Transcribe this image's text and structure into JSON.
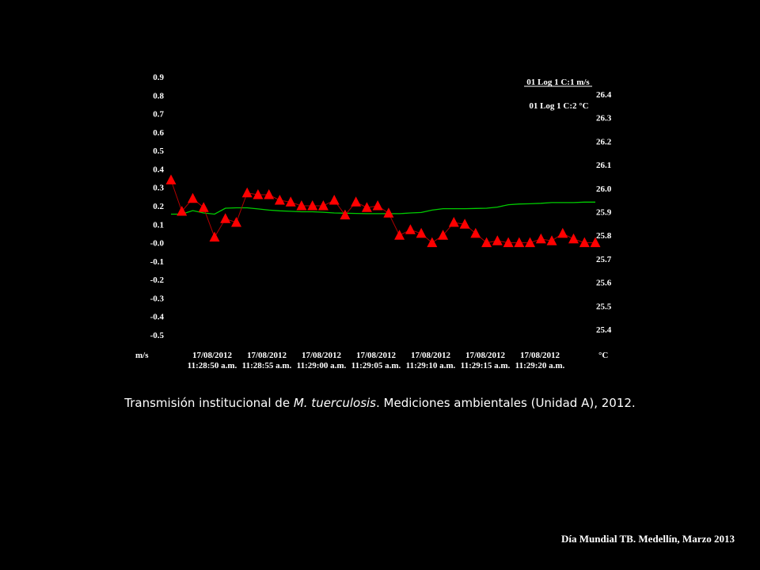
{
  "chart_data": {
    "type": "line",
    "x_tick_labels": [
      {
        "date": "17/08/2012",
        "time": "11:28:50 a.m."
      },
      {
        "date": "17/08/2012",
        "time": "11:28:55 a.m."
      },
      {
        "date": "17/08/2012",
        "time": "11:29:00 a.m."
      },
      {
        "date": "17/08/2012",
        "time": "11:29:05 a.m."
      },
      {
        "date": "17/08/2012",
        "time": "11:29:10 a.m."
      },
      {
        "date": "17/08/2012",
        "time": "11:29:15 a.m."
      },
      {
        "date": "17/08/2012",
        "time": "11:29:20 a.m."
      }
    ],
    "y_left": {
      "unit": "m/s",
      "ylim": [
        -0.55,
        0.9
      ],
      "ticks": [
        "0.9",
        "0.8",
        "0.7",
        "0.6",
        "0.5",
        "0.4",
        "0.3",
        "0.2",
        "0.1",
        "-0.0",
        "-0.1",
        "-0.2",
        "-0.3",
        "-0.4",
        "-0.5"
      ],
      "tick_values": [
        0.9,
        0.8,
        0.7,
        0.6,
        0.5,
        0.4,
        0.3,
        0.2,
        0.1,
        0.0,
        -0.1,
        -0.2,
        -0.3,
        -0.4,
        -0.5
      ]
    },
    "y_right": {
      "unit": "°C",
      "ylim": [
        25.35,
        26.45
      ],
      "ticks": [
        "26.4",
        "26.3",
        "26.2",
        "26.1",
        "26.0",
        "25.9",
        "25.8",
        "25.7",
        "25.6",
        "25.5",
        "25.4"
      ],
      "tick_values": [
        26.4,
        26.3,
        26.2,
        26.1,
        26.0,
        25.9,
        25.8,
        25.7,
        25.6,
        25.5,
        25.4
      ]
    },
    "series": [
      {
        "name": "01 Log 1 C:1 m/s",
        "axis": "left",
        "color": "#ff0000",
        "marker": "triangle",
        "values": [
          0.34,
          0.17,
          0.24,
          0.19,
          0.03,
          0.13,
          0.11,
          0.27,
          0.26,
          0.26,
          0.23,
          0.22,
          0.2,
          0.2,
          0.2,
          0.23,
          0.15,
          0.22,
          0.19,
          0.2,
          0.16,
          0.04,
          0.07,
          0.05,
          0.0,
          0.04,
          0.11,
          0.1,
          0.05,
          0.0,
          0.01,
          0.0,
          0.0,
          -0.0,
          0.02,
          0.01,
          0.05,
          0.02,
          0.0,
          -0.0
        ]
      },
      {
        "name": "01 Log 1 C:2 °C",
        "axis": "right",
        "color": "#00cc00",
        "marker": "none",
        "values": [
          25.89,
          25.89,
          25.905,
          25.895,
          25.89,
          25.915,
          25.917,
          25.917,
          25.912,
          25.907,
          25.904,
          25.902,
          25.9,
          25.9,
          25.898,
          25.895,
          25.894,
          25.893,
          25.892,
          25.892,
          25.892,
          25.892,
          25.895,
          25.897,
          25.907,
          25.913,
          25.913,
          25.913,
          25.914,
          25.915,
          25.92,
          25.93,
          25.933,
          25.934,
          25.936,
          25.939,
          25.939,
          25.939,
          25.941,
          25.941
        ]
      }
    ]
  },
  "caption": {
    "prefix": "Transmisión institucional de ",
    "italic": "M. tuerculosis",
    "suffix": ".  Mediciones ambientales (Unidad A), 2012."
  },
  "footer": "Día Mundial TB. Medellín, Marzo 2013"
}
